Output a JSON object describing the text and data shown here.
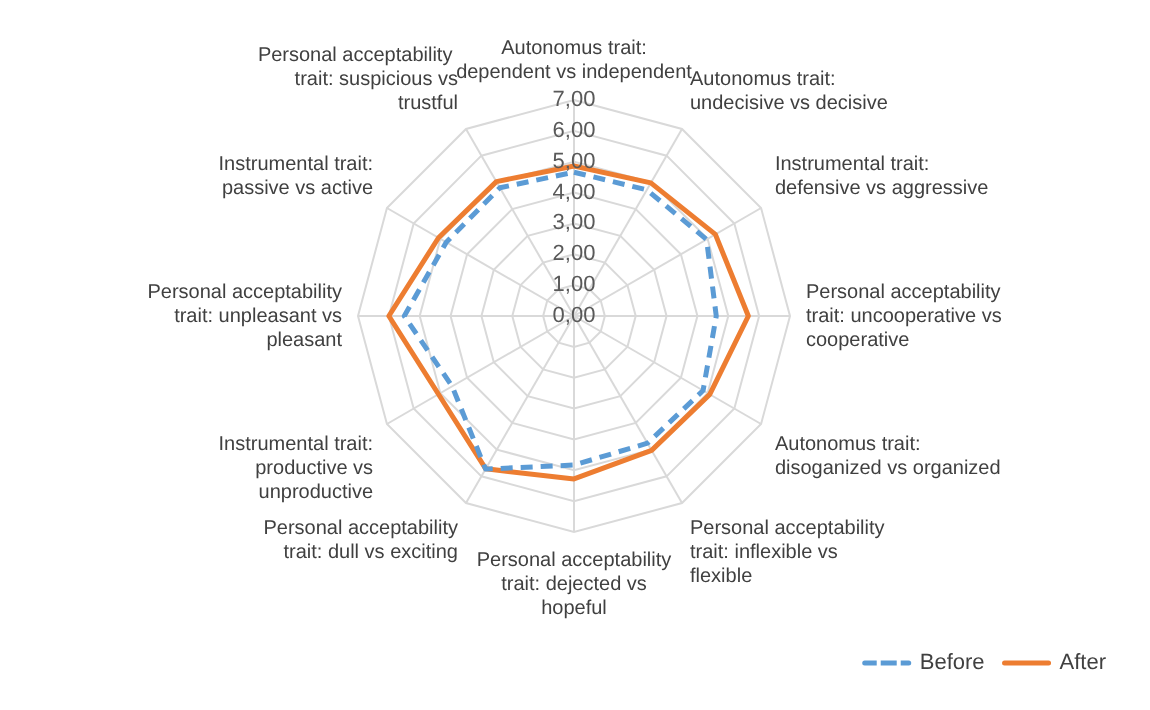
{
  "chart_data": {
    "type": "radar",
    "categories": [
      "Autonomus trait: dependent vs independent",
      "Autonomus trait: undecisive vs decisive",
      "Instrumental trait: defensive vs aggressive",
      "Personal acceptability trait: uncooperative vs cooperative",
      "Autonomus trait: disoganized vs organized",
      "Personal acceptability trait: inflexible vs flexible",
      "Personal acceptability trait: dejected vs hopeful",
      "Personal acceptability trait: dull vs exciting",
      "Instrumental trait: productive vs unproductive",
      "Personal acceptability trait: unpleasant vs pleasant",
      "Instrumental trait: passive vs active",
      "Personal acceptability  trait: suspicious vs trustful"
    ],
    "series": [
      {
        "name": "Before",
        "color": "#5b9bd5",
        "line_style": "dashed",
        "values": [
          4.66,
          4.72,
          4.96,
          4.61,
          4.83,
          4.76,
          4.83,
          5.73,
          4.56,
          5.5,
          4.78,
          4.8
        ]
      },
      {
        "name": "After",
        "color": "#ed7d31",
        "line_style": "solid",
        "values": [
          4.86,
          4.98,
          5.29,
          5.65,
          5.08,
          5.03,
          5.28,
          5.72,
          5.07,
          6.0,
          5.07,
          5.03
        ]
      }
    ],
    "ylim": [
      0,
      7
    ],
    "yticks": [
      {
        "value": 0,
        "label": "0,00"
      },
      {
        "value": 1,
        "label": "1,00"
      },
      {
        "value": 2,
        "label": "2,00"
      },
      {
        "value": 3,
        "label": "3,00"
      },
      {
        "value": 4,
        "label": "4,00"
      },
      {
        "value": 5,
        "label": "5,00"
      },
      {
        "value": 6,
        "label": "6,00"
      },
      {
        "value": 7,
        "label": "7,00"
      }
    ],
    "grid": true,
    "legend": "bottom right",
    "marker": "none"
  }
}
